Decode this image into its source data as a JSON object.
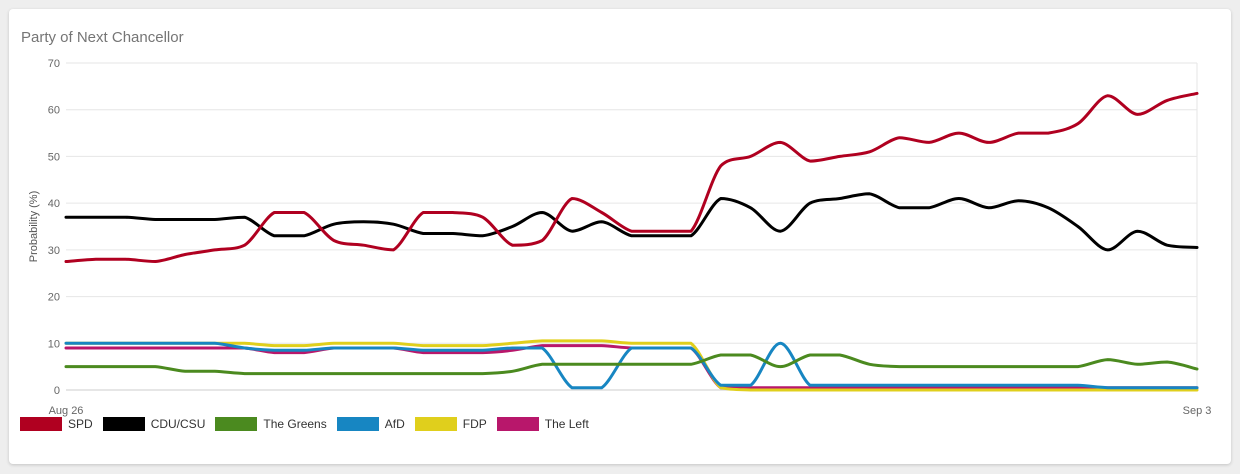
{
  "chart_data": {
    "type": "line",
    "title": "Party of Next Chancellor",
    "ylabel": "Probability (%)",
    "xlabel": "",
    "ylim": [
      0,
      70
    ],
    "yticks": [
      0,
      10,
      20,
      30,
      40,
      50,
      60,
      70
    ],
    "x_tick_labels": [
      "Aug 26",
      "Sep 3"
    ],
    "grid": true,
    "legend_position": "bottom-left",
    "series": [
      {
        "name": "SPD",
        "color": "#b00020",
        "values": [
          27.5,
          28,
          28,
          27.5,
          29,
          30,
          31,
          38,
          38,
          32,
          31,
          30,
          38,
          38,
          37,
          31,
          32,
          41,
          38,
          34,
          34,
          34,
          48,
          50,
          53,
          49,
          50,
          51,
          54,
          53,
          55,
          53,
          55,
          55,
          57,
          63,
          59,
          62,
          63.5
        ]
      },
      {
        "name": "CDU/CSU",
        "color": "#000000",
        "values": [
          37,
          37,
          37,
          36.5,
          36.5,
          36.5,
          37,
          33,
          33,
          35.5,
          36,
          35.5,
          33.5,
          33.5,
          33,
          35,
          38,
          34,
          36,
          33,
          33,
          33,
          41,
          39,
          34,
          40,
          41,
          42,
          39,
          39,
          41,
          39,
          40.5,
          39,
          35,
          30,
          34,
          31,
          30.5
        ]
      },
      {
        "name": "The Greens",
        "color": "#4b8a1f",
        "values": [
          5,
          5,
          5,
          5,
          4,
          4,
          3.5,
          3.5,
          3.5,
          3.5,
          3.5,
          3.5,
          3.5,
          3.5,
          3.5,
          4,
          5.5,
          5.5,
          5.5,
          5.5,
          5.5,
          5.5,
          7.5,
          7.5,
          5,
          7.5,
          7.5,
          5.5,
          5,
          5,
          5,
          5,
          5,
          5,
          5,
          6.5,
          5.5,
          6,
          4.5
        ]
      },
      {
        "name": "AfD",
        "color": "#1786c2",
        "values": [
          10,
          10,
          10,
          10,
          10,
          10,
          9,
          8.5,
          8.5,
          9,
          9,
          9,
          8.5,
          8.5,
          8.5,
          9,
          9,
          0.5,
          0.5,
          9,
          9,
          9,
          1,
          1,
          10,
          1,
          1,
          1,
          1,
          1,
          1,
          1,
          1,
          1,
          1,
          0.5,
          0.5,
          0.5,
          0.5
        ]
      },
      {
        "name": "FDP",
        "color": "#e0cf1c",
        "values": [
          10,
          10,
          10,
          10,
          10,
          10,
          10,
          9.5,
          9.5,
          10,
          10,
          10,
          9.5,
          9.5,
          9.5,
          10,
          10.5,
          10.5,
          10.5,
          10,
          10,
          10,
          0.5,
          0,
          0,
          0,
          0,
          0,
          0,
          0,
          0,
          0,
          0,
          0,
          0,
          0,
          0,
          0,
          0
        ]
      },
      {
        "name": "The Left",
        "color": "#b8176b",
        "values": [
          9,
          9,
          9,
          9,
          9,
          9,
          9,
          8,
          8,
          9,
          9,
          9,
          8,
          8,
          8,
          8.5,
          9.5,
          9.5,
          9.5,
          9,
          9,
          9,
          0.5,
          0.5,
          0.5,
          0.5,
          0.5,
          0.5,
          0.5,
          0.5,
          0.5,
          0.5,
          0.5,
          0.5,
          0.5,
          0.5,
          0.5,
          0.5,
          0.5
        ]
      }
    ]
  }
}
